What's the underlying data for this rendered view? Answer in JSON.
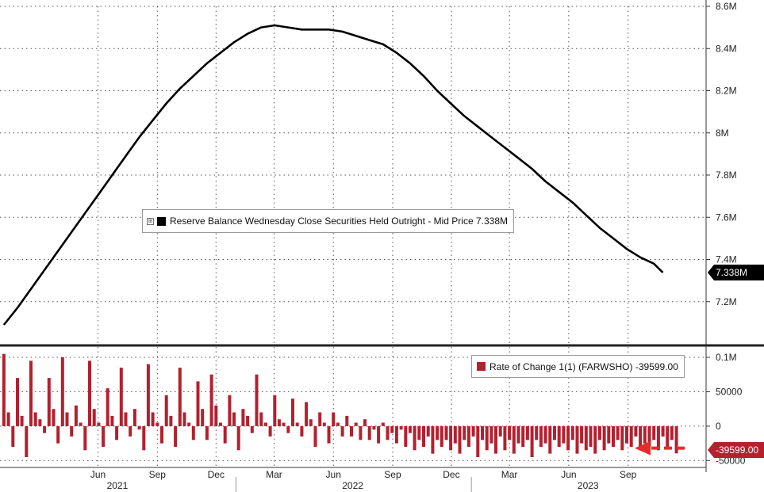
{
  "chart_data": [
    {
      "type": "line",
      "series": [
        {
          "name": "Reserve Balance Wednesday Close Securities Held Outright - Mid Price",
          "last_label": "7.338M",
          "color": "#000000",
          "points": [
            [
              "2021-01-06",
              7.09
            ],
            [
              "2021-01-27",
              7.17
            ],
            [
              "2021-02-17",
              7.26
            ],
            [
              "2021-03-10",
              7.35
            ],
            [
              "2021-03-31",
              7.44
            ],
            [
              "2021-04-21",
              7.53
            ],
            [
              "2021-05-12",
              7.62
            ],
            [
              "2021-06-02",
              7.71
            ],
            [
              "2021-06-23",
              7.8
            ],
            [
              "2021-07-14",
              7.89
            ],
            [
              "2021-08-04",
              7.98
            ],
            [
              "2021-08-25",
              8.06
            ],
            [
              "2021-09-15",
              8.14
            ],
            [
              "2021-10-06",
              8.21
            ],
            [
              "2021-10-27",
              8.27
            ],
            [
              "2021-11-17",
              8.33
            ],
            [
              "2021-12-08",
              8.38
            ],
            [
              "2021-12-29",
              8.43
            ],
            [
              "2022-01-19",
              8.47
            ],
            [
              "2022-02-09",
              8.5
            ],
            [
              "2022-03-02",
              8.51
            ],
            [
              "2022-03-23",
              8.5
            ],
            [
              "2022-04-13",
              8.49
            ],
            [
              "2022-05-04",
              8.49
            ],
            [
              "2022-05-25",
              8.49
            ],
            [
              "2022-06-15",
              8.48
            ],
            [
              "2022-07-06",
              8.46
            ],
            [
              "2022-07-27",
              8.44
            ],
            [
              "2022-08-17",
              8.42
            ],
            [
              "2022-09-07",
              8.38
            ],
            [
              "2022-09-28",
              8.33
            ],
            [
              "2022-10-19",
              8.27
            ],
            [
              "2022-11-09",
              8.2
            ],
            [
              "2022-11-30",
              8.14
            ],
            [
              "2022-12-21",
              8.08
            ],
            [
              "2023-01-11",
              8.03
            ],
            [
              "2023-02-01",
              7.98
            ],
            [
              "2023-02-22",
              7.93
            ],
            [
              "2023-03-15",
              7.88
            ],
            [
              "2023-04-05",
              7.83
            ],
            [
              "2023-04-26",
              7.77
            ],
            [
              "2023-05-17",
              7.72
            ],
            [
              "2023-06-07",
              7.67
            ],
            [
              "2023-06-28",
              7.61
            ],
            [
              "2023-07-19",
              7.55
            ],
            [
              "2023-08-09",
              7.5
            ],
            [
              "2023-08-30",
              7.45
            ],
            [
              "2023-09-20",
              7.41
            ],
            [
              "2023-10-11",
              7.38
            ],
            [
              "2023-10-25",
              7.338
            ]
          ]
        }
      ],
      "y_tick_labels": [
        "8.6M",
        "8.4M",
        "8.2M",
        "8M",
        "7.8M",
        "7.6M",
        "7.4M",
        "7.2M"
      ],
      "y_tick_values": [
        8.6,
        8.4,
        8.2,
        8.0,
        7.8,
        7.6,
        7.4,
        7.2
      ],
      "ylim": [
        7.0,
        8.6
      ],
      "grid": true
    },
    {
      "type": "bar",
      "series": [
        {
          "name": "Rate of Change 1(1) (FARWSHO)",
          "last_label": "-39599.00",
          "color": "#b3202e",
          "x_start": "2021-01-06",
          "x_step_days": 7,
          "values": [
            105000,
            20000,
            -30000,
            70000,
            15000,
            -45000,
            95000,
            20000,
            10000,
            -10000,
            70000,
            25000,
            -25000,
            100000,
            20000,
            -15000,
            30000,
            5000,
            -35000,
            95000,
            25000,
            5000,
            -30000,
            55000,
            15000,
            -20000,
            85000,
            20000,
            -15000,
            25000,
            -5000,
            -35000,
            90000,
            20000,
            5000,
            -25000,
            45000,
            15000,
            -30000,
            85000,
            20000,
            5000,
            -20000,
            65000,
            25000,
            -20000,
            75000,
            30000,
            5000,
            -25000,
            45000,
            20000,
            -35000,
            25000,
            15000,
            -10000,
            75000,
            20000,
            5000,
            -15000,
            45000,
            10000,
            5000,
            -10000,
            40000,
            5000,
            -15000,
            35000,
            10000,
            -30000,
            20000,
            5000,
            -25000,
            20000,
            5000,
            -15000,
            15000,
            -15000,
            5000,
            -20000,
            10000,
            -20000,
            -5000,
            -25000,
            5000,
            -20000,
            -10000,
            -25000,
            -5000,
            -30000,
            -10000,
            -35000,
            -20000,
            -30000,
            -15000,
            -40000,
            -20000,
            -30000,
            -20000,
            -35000,
            -25000,
            -40000,
            -20000,
            -30000,
            -15000,
            -45000,
            -20000,
            -35000,
            -25000,
            -40000,
            -15000,
            -35000,
            -20000,
            -40000,
            -25000,
            -30000,
            -20000,
            -45000,
            -20000,
            -30000,
            -25000,
            -40000,
            -20000,
            -30000,
            -25000,
            -35000,
            -20000,
            -40000,
            -25000,
            -35000,
            -30000,
            -40000,
            -20000,
            -35000,
            -25000,
            -30000,
            -20000,
            -35000,
            -25000,
            -30000,
            -15000,
            -35000,
            -25000,
            -30000,
            -20000,
            -35000,
            -15000,
            -30000,
            -20000,
            -39599
          ]
        }
      ],
      "y_tick_labels": [
        "0.1M",
        "50000",
        "0",
        "-50000"
      ],
      "y_tick_values": [
        100000,
        50000,
        0,
        -50000
      ],
      "ylim": [
        -60000,
        115000
      ],
      "annotation": {
        "type": "dashed-arrow",
        "color": "#e32b2b",
        "points_to": "latest bar"
      }
    }
  ],
  "x_axis": {
    "month_labels": [
      [
        "2021-06-01",
        "Jun"
      ],
      [
        "2021-09-01",
        "Sep"
      ],
      [
        "2021-12-01",
        "Dec"
      ],
      [
        "2022-03-01",
        "Mar"
      ],
      [
        "2022-06-01",
        "Jun"
      ],
      [
        "2022-09-01",
        "Sep"
      ],
      [
        "2022-12-01",
        "Dec"
      ],
      [
        "2023-03-01",
        "Mar"
      ],
      [
        "2023-06-01",
        "Jun"
      ],
      [
        "2023-09-01",
        "Sep"
      ]
    ],
    "year_labels": [
      [
        "2021-07-01",
        "2021"
      ],
      [
        "2022-07-01",
        "2022"
      ],
      [
        "2023-07-01",
        "2023"
      ]
    ],
    "range": [
      "2020-12-31",
      "2023-12-31"
    ]
  },
  "legend_icons": {
    "upper_box": "⊞"
  }
}
